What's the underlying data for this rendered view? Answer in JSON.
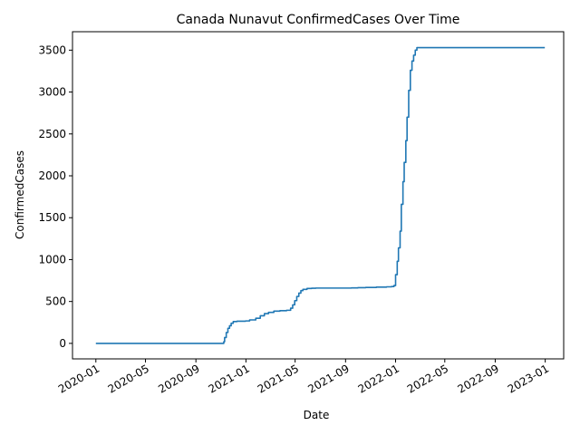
{
  "chart_data": {
    "type": "line",
    "title": "Canada Nunavut ConfirmedCases Over Time",
    "xlabel": "Date",
    "ylabel": "ConfirmedCases",
    "x_ticks": [
      "2020-01",
      "2020-05",
      "2020-09",
      "2021-01",
      "2021-05",
      "2021-09",
      "2022-01",
      "2022-05",
      "2022-09",
      "2023-01"
    ],
    "y_ticks": [
      0,
      500,
      1000,
      1500,
      2000,
      2500,
      3000,
      3500
    ],
    "ylim": [
      -185,
      3720
    ],
    "xlim": [
      "2019-11-05",
      "2023-02-15"
    ],
    "grid": false,
    "legend": "none",
    "colors": {
      "series": "#1f77b4"
    },
    "series": [
      {
        "x": [
          "2020-01-01",
          "2020-10-01",
          "2020-11-05",
          "2020-11-08",
          "2020-11-10",
          "2020-11-14",
          "2020-11-18",
          "2020-11-22",
          "2020-11-26",
          "2020-12-01",
          "2020-12-10",
          "2020-12-20",
          "2020-12-31",
          "2021-01-10",
          "2021-01-25",
          "2021-02-05",
          "2021-02-15",
          "2021-02-25",
          "2021-03-10",
          "2021-03-25",
          "2021-04-10",
          "2021-04-20",
          "2021-04-25",
          "2021-04-30",
          "2021-05-05",
          "2021-05-10",
          "2021-05-15",
          "2021-05-20",
          "2021-05-30",
          "2021-06-10",
          "2021-06-20",
          "2021-07-15",
          "2021-08-15",
          "2021-09-01",
          "2021-09-15",
          "2021-10-01",
          "2021-10-20",
          "2021-11-15",
          "2021-12-10",
          "2021-12-22",
          "2021-12-28",
          "2022-01-01",
          "2022-01-05",
          "2022-01-08",
          "2022-01-12",
          "2022-01-15",
          "2022-01-19",
          "2022-01-22",
          "2022-01-26",
          "2022-01-29",
          "2022-02-02",
          "2022-02-06",
          "2022-02-10",
          "2022-02-14",
          "2022-02-18",
          "2022-02-22",
          "2022-02-26",
          "2022-03-02",
          "2022-03-06",
          "2022-03-10",
          "2022-03-14",
          "2022-03-18",
          "2022-03-25",
          "2022-05-01",
          "2022-12-31"
        ],
        "values": [
          0,
          0,
          0,
          20,
          70,
          130,
          180,
          210,
          240,
          260,
          265,
          265,
          268,
          280,
          300,
          330,
          355,
          370,
          385,
          390,
          395,
          420,
          460,
          510,
          560,
          600,
          630,
          645,
          655,
          658,
          660,
          660,
          660,
          660,
          662,
          665,
          668,
          672,
          675,
          678,
          690,
          820,
          980,
          1140,
          1340,
          1660,
          1930,
          2160,
          2420,
          2700,
          3020,
          3260,
          3370,
          3440,
          3500,
          3530,
          3530,
          3530,
          3530,
          3530,
          3530,
          3530,
          3530,
          3530,
          3530
        ]
      }
    ]
  }
}
